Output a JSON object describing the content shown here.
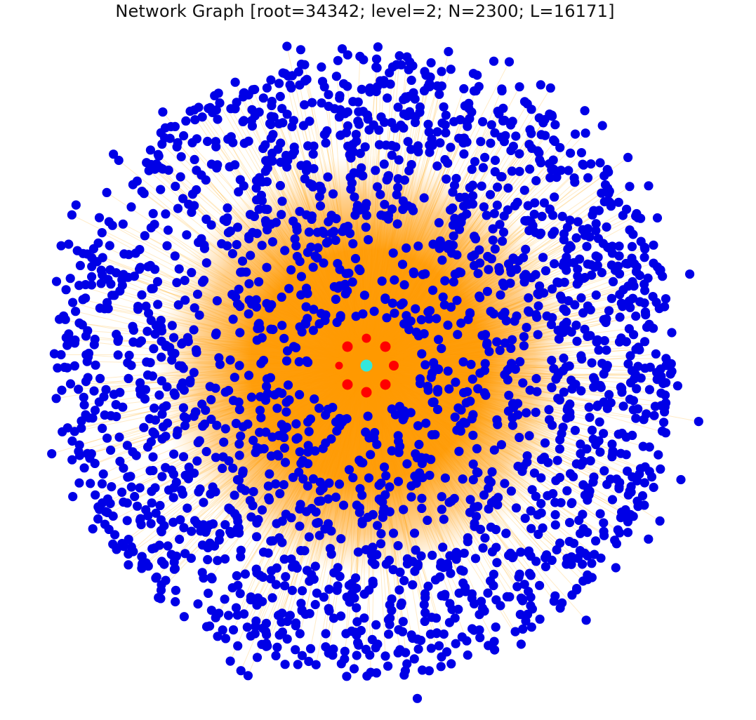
{
  "title": "Network Graph [root=34342; level=2; N=2300; L=16171]",
  "graph": {
    "root": 34342,
    "level": 2,
    "node_count": 2300,
    "link_count": 16171,
    "level1_node_count": 8,
    "layout": "radial",
    "colors": {
      "root": "#33e8dc",
      "level1": "#ff0000",
      "level2": "#0000e6",
      "edge": "#ffa500",
      "core_fill": "#ff9900",
      "background": "#ffffff"
    }
  }
}
